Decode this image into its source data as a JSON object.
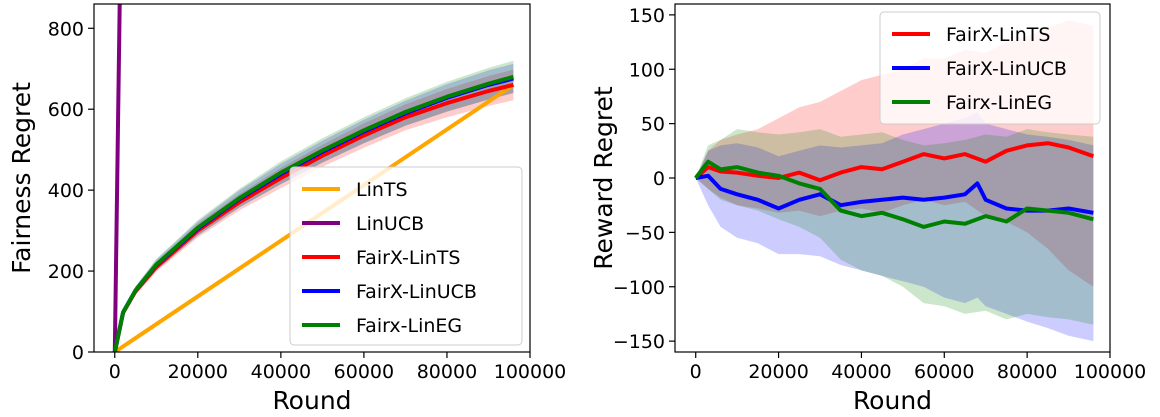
{
  "chart_data": [
    {
      "type": "line",
      "xlabel": "Round",
      "ylabel": "Fairness Regret",
      "xlim": [
        -5000,
        100000
      ],
      "ylim": [
        0,
        860
      ],
      "xticks": [
        0,
        20000,
        40000,
        60000,
        80000,
        100000
      ],
      "yticks": [
        0,
        200,
        400,
        600,
        800
      ],
      "legend_position": "lower-right",
      "grid": false,
      "series": [
        {
          "name": "LinTS",
          "color": "#ffa500",
          "x": [
            0,
            96000
          ],
          "y": [
            0,
            660
          ]
        },
        {
          "name": "LinUCB",
          "color": "#800080",
          "x": [
            0,
            1200
          ],
          "y": [
            0,
            860
          ]
        },
        {
          "name": "FairX-LinTS",
          "color": "#ff0000",
          "x": [
            0,
            2000,
            5000,
            10000,
            20000,
            30000,
            40000,
            50000,
            60000,
            70000,
            80000,
            90000,
            96000
          ],
          "y": [
            0,
            97,
            150,
            210,
            300,
            370,
            430,
            485,
            535,
            580,
            615,
            645,
            660
          ],
          "band": [
            [
              0,
              0
            ],
            [
              90,
              104
            ],
            [
              140,
              160
            ],
            [
              198,
              222
            ],
            [
              283,
              317
            ],
            [
              350,
              390
            ],
            [
              405,
              455
            ],
            [
              458,
              512
            ],
            [
              505,
              565
            ],
            [
              548,
              612
            ],
            [
              580,
              650
            ],
            [
              608,
              682
            ],
            [
              622,
              698
            ]
          ]
        },
        {
          "name": "FairX-LinUCB",
          "color": "#0000ff",
          "x": [
            0,
            2000,
            5000,
            10000,
            20000,
            30000,
            40000,
            50000,
            60000,
            70000,
            80000,
            90000,
            96000
          ],
          "y": [
            0,
            98,
            152,
            215,
            305,
            378,
            440,
            495,
            545,
            590,
            628,
            660,
            676
          ],
          "band": [
            [
              0,
              0
            ],
            [
              91,
              105
            ],
            [
              142,
              162
            ],
            [
              202,
              228
            ],
            [
              288,
              322
            ],
            [
              357,
              399
            ],
            [
              415,
              465
            ],
            [
              468,
              522
            ],
            [
              516,
              574
            ],
            [
              559,
              621
            ],
            [
              594,
              662
            ],
            [
              624,
              696
            ],
            [
              640,
              712
            ]
          ]
        },
        {
          "name": "Fairx-LinEG",
          "color": "#008000",
          "x": [
            0,
            2000,
            5000,
            10000,
            20000,
            30000,
            40000,
            50000,
            60000,
            70000,
            80000,
            90000,
            96000
          ],
          "y": [
            0,
            98,
            152,
            216,
            307,
            380,
            443,
            498,
            548,
            593,
            631,
            663,
            680
          ],
          "band": [
            [
              0,
              0
            ],
            [
              91,
              105
            ],
            [
              142,
              162
            ],
            [
              202,
              230
            ],
            [
              288,
              326
            ],
            [
              357,
              403
            ],
            [
              415,
              471
            ],
            [
              468,
              528
            ],
            [
              516,
              580
            ],
            [
              559,
              627
            ],
            [
              594,
              668
            ],
            [
              624,
              702
            ],
            [
              640,
              720
            ]
          ]
        }
      ]
    },
    {
      "type": "line",
      "xlabel": "Round",
      "ylabel": "Reward Regret",
      "xlim": [
        -5000,
        100000
      ],
      "ylim": [
        -160,
        160
      ],
      "xticks": [
        0,
        20000,
        40000,
        60000,
        80000,
        100000
      ],
      "yticks": [
        -150,
        -100,
        -50,
        0,
        50,
        100,
        150
      ],
      "legend_position": "top-right",
      "grid": false,
      "series": [
        {
          "name": "FairX-LinTS",
          "color": "#ff0000",
          "x": [
            0,
            3000,
            6000,
            10000,
            15000,
            20000,
            25000,
            30000,
            35000,
            40000,
            45000,
            50000,
            55000,
            60000,
            65000,
            70000,
            75000,
            80000,
            85000,
            90000,
            96000
          ],
          "y": [
            0,
            10,
            6,
            5,
            2,
            0,
            5,
            -2,
            5,
            10,
            8,
            15,
            22,
            18,
            22,
            15,
            25,
            30,
            32,
            28,
            20
          ],
          "band": [
            [
              0,
              0
            ],
            [
              -10,
              25
            ],
            [
              -18,
              35
            ],
            [
              -25,
              40
            ],
            [
              -28,
              45
            ],
            [
              -32,
              55
            ],
            [
              -30,
              65
            ],
            [
              -35,
              70
            ],
            [
              -30,
              80
            ],
            [
              -28,
              90
            ],
            [
              -32,
              95
            ],
            [
              -25,
              100
            ],
            [
              -20,
              110
            ],
            [
              -25,
              110
            ],
            [
              -22,
              118
            ],
            [
              -35,
              115
            ],
            [
              -40,
              125
            ],
            [
              -50,
              130
            ],
            [
              -65,
              138
            ],
            [
              -85,
              145
            ],
            [
              -100,
              140
            ]
          ]
        },
        {
          "name": "FairX-LinUCB",
          "color": "#0000ff",
          "x": [
            0,
            3000,
            6000,
            10000,
            15000,
            20000,
            25000,
            30000,
            35000,
            40000,
            45000,
            50000,
            55000,
            60000,
            65000,
            68000,
            70000,
            75000,
            80000,
            85000,
            90000,
            96000
          ],
          "y": [
            0,
            2,
            -10,
            -15,
            -20,
            -28,
            -20,
            -15,
            -25,
            -22,
            -20,
            -18,
            -20,
            -18,
            -15,
            -5,
            -20,
            -28,
            -30,
            -30,
            -28,
            -32
          ],
          "band": [
            [
              0,
              0
            ],
            [
              -25,
              25
            ],
            [
              -45,
              30
            ],
            [
              -55,
              32
            ],
            [
              -60,
              28
            ],
            [
              -70,
              20
            ],
            [
              -70,
              25
            ],
            [
              -72,
              30
            ],
            [
              -80,
              28
            ],
            [
              -85,
              30
            ],
            [
              -90,
              32
            ],
            [
              -95,
              40
            ],
            [
              -100,
              45
            ],
            [
              -110,
              50
            ],
            [
              -115,
              55
            ],
            [
              -110,
              60
            ],
            [
              -118,
              50
            ],
            [
              -125,
              45
            ],
            [
              -132,
              40
            ],
            [
              -138,
              38
            ],
            [
              -145,
              35
            ],
            [
              -150,
              30
            ]
          ]
        },
        {
          "name": "Fairx-LinEG",
          "color": "#008000",
          "x": [
            0,
            3000,
            6000,
            10000,
            15000,
            20000,
            25000,
            30000,
            35000,
            40000,
            45000,
            50000,
            55000,
            60000,
            65000,
            70000,
            75000,
            80000,
            85000,
            90000,
            96000
          ],
          "y": [
            0,
            15,
            8,
            10,
            5,
            2,
            -5,
            -10,
            -30,
            -35,
            -32,
            -38,
            -45,
            -40,
            -42,
            -35,
            -40,
            -28,
            -30,
            -32,
            -38
          ],
          "band": [
            [
              0,
              0
            ],
            [
              -10,
              30
            ],
            [
              -20,
              35
            ],
            [
              -25,
              45
            ],
            [
              -30,
              42
            ],
            [
              -38,
              40
            ],
            [
              -45,
              42
            ],
            [
              -55,
              45
            ],
            [
              -75,
              38
            ],
            [
              -85,
              40
            ],
            [
              -90,
              42
            ],
            [
              -100,
              35
            ],
            [
              -115,
              30
            ],
            [
              -118,
              32
            ],
            [
              -125,
              35
            ],
            [
              -122,
              40
            ],
            [
              -130,
              38
            ],
            [
              -125,
              45
            ],
            [
              -128,
              42
            ],
            [
              -130,
              40
            ],
            [
              -135,
              38
            ]
          ]
        }
      ]
    }
  ]
}
